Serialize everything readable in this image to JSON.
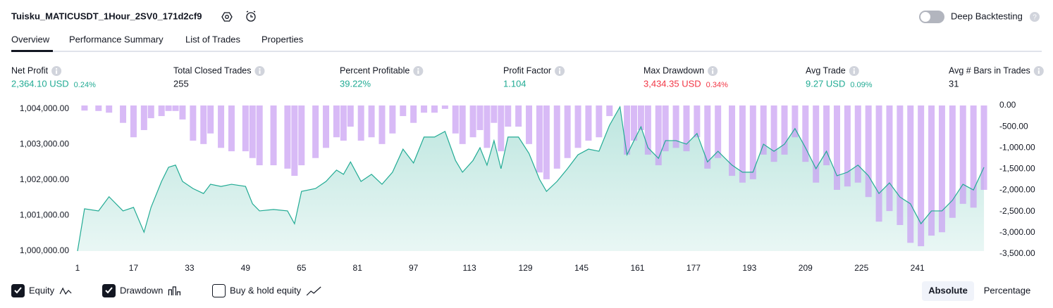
{
  "header": {
    "title": "Tuisku_MATICUSDT_1Hour_2SV0_171d2cf9",
    "toggle_label": "Deep Backtesting"
  },
  "tabs": [
    "Overview",
    "Performance Summary",
    "List of Trades",
    "Properties"
  ],
  "metrics": [
    {
      "label": "Net Profit",
      "value": "2,364.10 USD",
      "extra": "0.24%",
      "color": "#22ab94"
    },
    {
      "label": "Total Closed Trades",
      "value": "255",
      "color": "#131722"
    },
    {
      "label": "Percent Profitable",
      "value": "39.22%",
      "color": "#22ab94"
    },
    {
      "label": "Profit Factor",
      "value": "1.104",
      "color": "#22ab94"
    },
    {
      "label": "Max Drawdown",
      "value": "3,434.35 USD",
      "extra": "0.34%",
      "color": "#f23645"
    },
    {
      "label": "Avg Trade",
      "value": "9.27 USD",
      "extra": "0.09%",
      "color": "#22ab94"
    },
    {
      "label": "Avg # Bars in Trades",
      "value": "31",
      "color": "#131722"
    }
  ],
  "chart_data": {
    "type": "line",
    "x": [
      1,
      3,
      7,
      10,
      14,
      17,
      20,
      22,
      25,
      27,
      29,
      31,
      34,
      37,
      39,
      42,
      45,
      49,
      51,
      53,
      57,
      61,
      63,
      65,
      69,
      72,
      75,
      77,
      79,
      82,
      85,
      88,
      91,
      94,
      97,
      100,
      103,
      106,
      109,
      111,
      114,
      116,
      118,
      120,
      122,
      124,
      127,
      130,
      133,
      135,
      138,
      141,
      144,
      147,
      150,
      153,
      156,
      158,
      160,
      162,
      164,
      167,
      169,
      172,
      175,
      178,
      181,
      184,
      188,
      191,
      194,
      197,
      200,
      203,
      206,
      209,
      212,
      215,
      218,
      221,
      224,
      227,
      230,
      233,
      236,
      239,
      242,
      245,
      248,
      251,
      254,
      257,
      260
    ],
    "xlim": [
      1,
      261
    ],
    "xticks": [
      1,
      17,
      33,
      49,
      65,
      81,
      97,
      113,
      129,
      145,
      161,
      177,
      193,
      209,
      225,
      241
    ],
    "ylim": [
      1000000,
      1004000
    ],
    "yticks": [
      {
        "value": 1000000,
        "label": "1,000,000.00"
      },
      {
        "value": 1001000,
        "label": "1,001,000.00"
      },
      {
        "value": 1002000,
        "label": "1,002,000.00"
      },
      {
        "value": 1003000,
        "label": "1,003,000.00"
      },
      {
        "value": 1004000,
        "label": "1,004,000.00"
      }
    ],
    "y2lim": [
      -3500,
      0
    ],
    "y2ticks": [
      {
        "value": 0,
        "label": "0.00"
      },
      {
        "value": -500,
        "label": "-500.00"
      },
      {
        "value": -1000,
        "label": "-1,000.00"
      },
      {
        "value": -1500,
        "label": "-1,500.00"
      },
      {
        "value": -2000,
        "label": "-2,000.00"
      },
      {
        "value": -2500,
        "label": "-2,500.00"
      },
      {
        "value": -3000,
        "label": "-3,000.00"
      },
      {
        "value": -3500,
        "label": "-3,500.00"
      }
    ],
    "series": [
      {
        "name": "Equity",
        "type": "area",
        "color": "#22ab94",
        "checked": true,
        "values": [
          1000000,
          1001190,
          1001130,
          1001530,
          1001130,
          1001230,
          1000530,
          1001230,
          1001960,
          1002360,
          1002420,
          1001960,
          1001760,
          1001620,
          1001880,
          1001820,
          1001880,
          1001820,
          1001330,
          1001130,
          1001170,
          1001130,
          1000770,
          1001680,
          1001760,
          1001960,
          1002280,
          1002160,
          1002510,
          1001960,
          1002160,
          1001880,
          1002220,
          1002870,
          1002480,
          1003210,
          1003210,
          1003370,
          1002550,
          1002220,
          1002550,
          1002910,
          1002420,
          1003110,
          1002320,
          1003210,
          1003210,
          1002750,
          1002020,
          1001680,
          1001960,
          1002320,
          1002710,
          1002870,
          1002810,
          1003540,
          1004060,
          1002710,
          1003110,
          1003500,
          1002910,
          1002610,
          1003110,
          1003110,
          1003010,
          1003310,
          1002510,
          1002810,
          1002420,
          1002220,
          1002220,
          1003010,
          1002810,
          1003010,
          1003450,
          1002910,
          1002320,
          1002810,
          1002120,
          1002220,
          1002420,
          1002120,
          1001620,
          1001920,
          1001520,
          1001330,
          1000770,
          1001130,
          1001130,
          1001430,
          1001880,
          1001720,
          1002360
        ]
      },
      {
        "name": "Drawdown",
        "type": "bar",
        "axis": "y2",
        "color": "#c79cf2",
        "checked": true,
        "values": [
          0,
          -120,
          -130,
          -170,
          -410,
          -750,
          -580,
          -300,
          -250,
          -130,
          -130,
          -330,
          -830,
          -910,
          -660,
          -1000,
          -1080,
          -1080,
          -1240,
          -1410,
          -1410,
          -1490,
          -1660,
          -1410,
          -1240,
          -1000,
          -750,
          -830,
          -500,
          -830,
          -750,
          -910,
          -660,
          -250,
          -410,
          -170,
          -170,
          -80,
          -660,
          -910,
          -750,
          -580,
          -1000,
          -410,
          -1080,
          -500,
          -500,
          -910,
          -1580,
          -1740,
          -1490,
          -1240,
          -1000,
          -830,
          -750,
          -250,
          0,
          -1160,
          -830,
          -580,
          -1160,
          -1410,
          -1080,
          -1000,
          -1080,
          -750,
          -1490,
          -1240,
          -1660,
          -1820,
          -1740,
          -1160,
          -1330,
          -1160,
          -750,
          -1330,
          -1820,
          -1410,
          -1990,
          -1910,
          -1820,
          -2160,
          -2740,
          -2490,
          -2820,
          -3240,
          -3320,
          -3070,
          -2990,
          -2650,
          -2320,
          -2410,
          -1990
        ]
      },
      {
        "name": "Buy & hold equity",
        "checked": false
      }
    ]
  },
  "modes": [
    "Absolute",
    "Percentage"
  ]
}
